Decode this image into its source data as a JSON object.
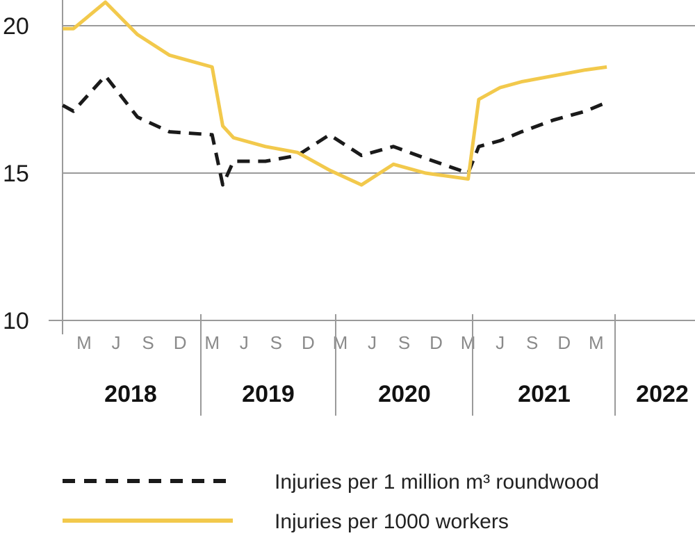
{
  "chart_data": {
    "type": "line",
    "ylim": [
      10,
      20.8
    ],
    "yticks": [
      10,
      15,
      20
    ],
    "grid": "horizontal",
    "legend_position": "bottom",
    "month_labels": [
      "M",
      "J",
      "S",
      "D",
      "M",
      "J",
      "S",
      "D",
      "M",
      "J",
      "S",
      "D",
      "M",
      "J",
      "S",
      "D",
      "M"
    ],
    "years": [
      "2018",
      "2019",
      "2020",
      "2021",
      "2022"
    ],
    "x": [
      "2018-02",
      "2018-03",
      "2018-06",
      "2018-09",
      "2018-12",
      "2019-04",
      "2019-05",
      "2019-06",
      "2019-09",
      "2019-12",
      "2020-03",
      "2020-06",
      "2020-09",
      "2020-12",
      "2021-04",
      "2021-05",
      "2021-07",
      "2021-09",
      "2021-12",
      "2022-03",
      "2022-05"
    ],
    "series": [
      {
        "name": "Injuries per 1 million m³ roundwood",
        "color": "#1a1a1a",
        "style": "dashed",
        "values": [
          17.3,
          17.1,
          18.3,
          16.9,
          16.4,
          16.3,
          14.6,
          15.4,
          15.4,
          15.6,
          16.3,
          15.6,
          15.9,
          15.5,
          15.0,
          15.9,
          16.1,
          16.4,
          16.8,
          17.1,
          17.4
        ]
      },
      {
        "name": "Injuries per 1000 workers",
        "color": "#f2c94c",
        "style": "solid",
        "values": [
          19.9,
          19.9,
          20.8,
          19.7,
          19.0,
          18.6,
          16.6,
          16.2,
          15.9,
          15.7,
          15.1,
          14.6,
          15.3,
          15.0,
          14.8,
          17.5,
          17.9,
          18.1,
          18.3,
          18.5,
          18.6
        ]
      }
    ]
  }
}
